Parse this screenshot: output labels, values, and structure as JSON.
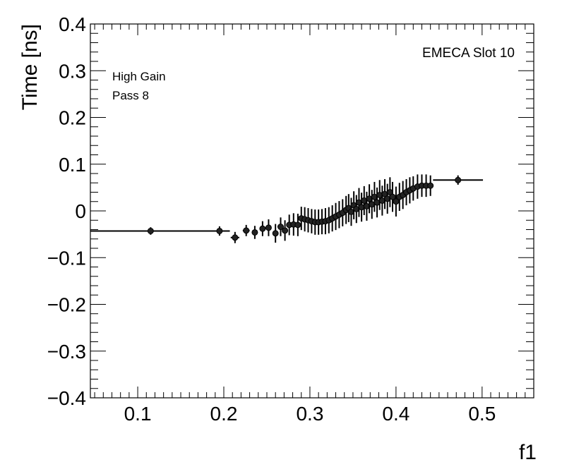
{
  "chart_data": {
    "type": "scatter",
    "title": "",
    "xlabel": "f1",
    "ylabel": "Time [ns]",
    "xlim": [
      0.045,
      0.56
    ],
    "ylim": [
      -0.4,
      0.4
    ],
    "x_ticks": [
      "0.1",
      "0.2",
      "0.3",
      "0.4",
      "0.5"
    ],
    "y_ticks": [
      "−0.4",
      "−0.3",
      "−0.2",
      "−0.1",
      "0",
      "0.1",
      "0.2",
      "0.3",
      "0.4"
    ],
    "grid": false,
    "annotations": {
      "top_right": "EMECA Slot 10",
      "line1": "High Gain",
      "line2": "Pass 8"
    },
    "series": [
      {
        "points": [
          {
            "x": 0.115,
            "y": -0.043,
            "xerr": 0.07,
            "yerr": 0.008
          },
          {
            "x": 0.195,
            "y": -0.043,
            "xerr": 0.012,
            "yerr": 0.01
          },
          {
            "x": 0.213,
            "y": -0.057,
            "xerr": 0.005,
            "yerr": 0.012
          },
          {
            "x": 0.226,
            "y": -0.042,
            "xerr": 0.004,
            "yerr": 0.012
          },
          {
            "x": 0.236,
            "y": -0.046,
            "xerr": 0.003,
            "yerr": 0.014
          },
          {
            "x": 0.245,
            "y": -0.038,
            "xerr": 0.003,
            "yerr": 0.016
          },
          {
            "x": 0.252,
            "y": -0.036,
            "xerr": 0.003,
            "yerr": 0.018
          },
          {
            "x": 0.26,
            "y": -0.048,
            "xerr": 0.002,
            "yerr": 0.02
          },
          {
            "x": 0.266,
            "y": -0.034,
            "xerr": 0.002,
            "yerr": 0.02
          },
          {
            "x": 0.271,
            "y": -0.042,
            "xerr": 0.002,
            "yerr": 0.022
          },
          {
            "x": 0.276,
            "y": -0.03,
            "xerr": 0.002,
            "yerr": 0.022
          },
          {
            "x": 0.281,
            "y": -0.029,
            "xerr": 0.002,
            "yerr": 0.024
          },
          {
            "x": 0.286,
            "y": -0.03,
            "xerr": 0.002,
            "yerr": 0.024
          },
          {
            "x": 0.29,
            "y": -0.016,
            "xerr": 0.002,
            "yerr": 0.025
          },
          {
            "x": 0.294,
            "y": -0.018,
            "xerr": 0.002,
            "yerr": 0.026
          },
          {
            "x": 0.298,
            "y": -0.02,
            "xerr": 0.002,
            "yerr": 0.026
          },
          {
            "x": 0.302,
            "y": -0.022,
            "xerr": 0.002,
            "yerr": 0.026
          },
          {
            "x": 0.306,
            "y": -0.024,
            "xerr": 0.002,
            "yerr": 0.027
          },
          {
            "x": 0.31,
            "y": -0.024,
            "xerr": 0.002,
            "yerr": 0.027
          },
          {
            "x": 0.314,
            "y": -0.023,
            "xerr": 0.002,
            "yerr": 0.027
          },
          {
            "x": 0.318,
            "y": -0.022,
            "xerr": 0.002,
            "yerr": 0.028
          },
          {
            "x": 0.322,
            "y": -0.02,
            "xerr": 0.002,
            "yerr": 0.028
          },
          {
            "x": 0.326,
            "y": -0.016,
            "xerr": 0.002,
            "yerr": 0.028
          },
          {
            "x": 0.33,
            "y": -0.012,
            "xerr": 0.002,
            "yerr": 0.029
          },
          {
            "x": 0.334,
            "y": -0.008,
            "xerr": 0.002,
            "yerr": 0.029
          },
          {
            "x": 0.338,
            "y": -0.004,
            "xerr": 0.002,
            "yerr": 0.029
          },
          {
            "x": 0.342,
            "y": 0.002,
            "xerr": 0.001,
            "yerr": 0.03
          },
          {
            "x": 0.345,
            "y": 0.006,
            "xerr": 0.001,
            "yerr": 0.03
          },
          {
            "x": 0.348,
            "y": -0.002,
            "xerr": 0.001,
            "yerr": 0.03
          },
          {
            "x": 0.351,
            "y": 0.012,
            "xerr": 0.001,
            "yerr": 0.03
          },
          {
            "x": 0.354,
            "y": 0.004,
            "xerr": 0.001,
            "yerr": 0.03
          },
          {
            "x": 0.357,
            "y": 0.018,
            "xerr": 0.001,
            "yerr": 0.031
          },
          {
            "x": 0.36,
            "y": 0.008,
            "xerr": 0.001,
            "yerr": 0.031
          },
          {
            "x": 0.363,
            "y": 0.022,
            "xerr": 0.001,
            "yerr": 0.031
          },
          {
            "x": 0.366,
            "y": 0.01,
            "xerr": 0.001,
            "yerr": 0.031
          },
          {
            "x": 0.369,
            "y": 0.026,
            "xerr": 0.001,
            "yerr": 0.031
          },
          {
            "x": 0.372,
            "y": 0.014,
            "xerr": 0.001,
            "yerr": 0.031
          },
          {
            "x": 0.375,
            "y": 0.03,
            "xerr": 0.001,
            "yerr": 0.032
          },
          {
            "x": 0.378,
            "y": 0.018,
            "xerr": 0.001,
            "yerr": 0.032
          },
          {
            "x": 0.381,
            "y": 0.034,
            "xerr": 0.001,
            "yerr": 0.032
          },
          {
            "x": 0.384,
            "y": 0.022,
            "xerr": 0.001,
            "yerr": 0.032
          },
          {
            "x": 0.387,
            "y": 0.036,
            "xerr": 0.001,
            "yerr": 0.032
          },
          {
            "x": 0.39,
            "y": 0.026,
            "xerr": 0.001,
            "yerr": 0.032
          },
          {
            "x": 0.393,
            "y": 0.04,
            "xerr": 0.001,
            "yerr": 0.032
          },
          {
            "x": 0.396,
            "y": 0.03,
            "xerr": 0.001,
            "yerr": 0.032
          },
          {
            "x": 0.4,
            "y": 0.02,
            "xerr": 0.001,
            "yerr": 0.032
          },
          {
            "x": 0.404,
            "y": 0.03,
            "xerr": 0.002,
            "yerr": 0.03
          },
          {
            "x": 0.408,
            "y": 0.034,
            "xerr": 0.002,
            "yerr": 0.03
          },
          {
            "x": 0.412,
            "y": 0.04,
            "xerr": 0.002,
            "yerr": 0.028
          },
          {
            "x": 0.416,
            "y": 0.044,
            "xerr": 0.002,
            "yerr": 0.028
          },
          {
            "x": 0.42,
            "y": 0.048,
            "xerr": 0.002,
            "yerr": 0.026
          },
          {
            "x": 0.425,
            "y": 0.052,
            "xerr": 0.002,
            "yerr": 0.026
          },
          {
            "x": 0.43,
            "y": 0.054,
            "xerr": 0.003,
            "yerr": 0.024
          },
          {
            "x": 0.435,
            "y": 0.054,
            "xerr": 0.003,
            "yerr": 0.024
          },
          {
            "x": 0.44,
            "y": 0.054,
            "xerr": 0.003,
            "yerr": 0.022
          },
          {
            "x": 0.472,
            "y": 0.066,
            "xerr": 0.029,
            "yerr": 0.01
          }
        ]
      }
    ]
  }
}
